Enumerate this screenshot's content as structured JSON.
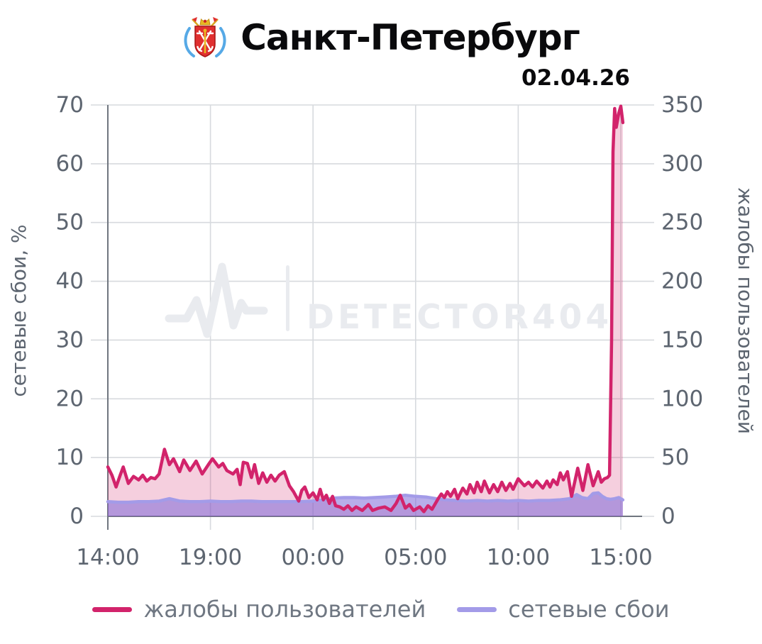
{
  "header": {
    "title": "Санкт-Петербург",
    "date": "02.04.26",
    "emblem_icon": "spb-coat-of-arms-icon"
  },
  "watermark": {
    "brand": "DETECTOR404",
    "icon": "pulse-icon"
  },
  "colors": {
    "complaints": "#d2236b",
    "complaints_fill": "rgba(210,35,107,0.22)",
    "outages": "#a39be8",
    "outages_fill": "rgba(126,106,216,0.55)",
    "grid": "#d7dade",
    "axis": "#70767f",
    "tick_text": "#5d6570",
    "legend_text": "#6f7782",
    "watermark": "#e9ebef",
    "title_text": "#0a0a0c"
  },
  "legend": {
    "items": [
      {
        "label": "жалобы пользователей",
        "color_key": "complaints"
      },
      {
        "label": "сетевые сбои",
        "color_key": "outages"
      }
    ]
  },
  "chart_data": {
    "type": "line",
    "title": "Санкт-Петербург",
    "subtitle": "02.04.26",
    "x_unit": "hours since 14:00",
    "x_ticks": [
      "14:00",
      "19:00",
      "00:00",
      "05:00",
      "10:00",
      "15:00"
    ],
    "x_tick_hours": [
      0,
      5,
      10,
      15,
      20,
      25
    ],
    "x_range_hours": [
      0,
      25.1
    ],
    "grid": true,
    "legend_position": "bottom",
    "left_axis": {
      "label": "сетевые сбои, %",
      "min": 0,
      "max": 70,
      "ticks": [
        0,
        10,
        20,
        30,
        40,
        50,
        60,
        70
      ]
    },
    "right_axis": {
      "label": "жалобы пользователей",
      "min": 0,
      "max": 350,
      "ticks": [
        0,
        50,
        100,
        150,
        200,
        250,
        300,
        350
      ]
    },
    "series": [
      {
        "name": "жалобы пользователей",
        "axis": "right",
        "color": "#d2236b",
        "points": [
          [
            0,
            42
          ],
          [
            0.2,
            35
          ],
          [
            0.4,
            25
          ],
          [
            0.6,
            35
          ],
          [
            0.75,
            42
          ],
          [
            1.0,
            28
          ],
          [
            1.25,
            34
          ],
          [
            1.5,
            31
          ],
          [
            1.7,
            35
          ],
          [
            1.9,
            30
          ],
          [
            2.1,
            33
          ],
          [
            2.3,
            32
          ],
          [
            2.5,
            36
          ],
          [
            2.76,
            57
          ],
          [
            3.0,
            44
          ],
          [
            3.2,
            49
          ],
          [
            3.5,
            38
          ],
          [
            3.7,
            48
          ],
          [
            4.0,
            39
          ],
          [
            4.3,
            47
          ],
          [
            4.6,
            36
          ],
          [
            4.9,
            44
          ],
          [
            5.1,
            49
          ],
          [
            5.4,
            42
          ],
          [
            5.6,
            45
          ],
          [
            5.8,
            39
          ],
          [
            6.1,
            36
          ],
          [
            6.3,
            40
          ],
          [
            6.45,
            27
          ],
          [
            6.6,
            46
          ],
          [
            6.8,
            45
          ],
          [
            7.0,
            33
          ],
          [
            7.15,
            44
          ],
          [
            7.35,
            28
          ],
          [
            7.55,
            37
          ],
          [
            7.75,
            29
          ],
          [
            7.95,
            35
          ],
          [
            8.15,
            30
          ],
          [
            8.35,
            35
          ],
          [
            8.6,
            38
          ],
          [
            8.85,
            26
          ],
          [
            9.05,
            21
          ],
          [
            9.3,
            13
          ],
          [
            9.45,
            22
          ],
          [
            9.6,
            25
          ],
          [
            9.8,
            16
          ],
          [
            10.0,
            20
          ],
          [
            10.2,
            14
          ],
          [
            10.35,
            23
          ],
          [
            10.5,
            14
          ],
          [
            10.65,
            18
          ],
          [
            10.8,
            11
          ],
          [
            10.95,
            17
          ],
          [
            11.1,
            9
          ],
          [
            11.3,
            8
          ],
          [
            11.5,
            6
          ],
          [
            11.7,
            9
          ],
          [
            11.9,
            5
          ],
          [
            12.1,
            8
          ],
          [
            12.4,
            5
          ],
          [
            12.7,
            10
          ],
          [
            12.9,
            5
          ],
          [
            13.2,
            7
          ],
          [
            13.5,
            8
          ],
          [
            13.8,
            5
          ],
          [
            14.05,
            11
          ],
          [
            14.25,
            18
          ],
          [
            14.5,
            7
          ],
          [
            14.7,
            10
          ],
          [
            14.9,
            5
          ],
          [
            15.2,
            8
          ],
          [
            15.4,
            4
          ],
          [
            15.6,
            9
          ],
          [
            15.8,
            6
          ],
          [
            16.1,
            15
          ],
          [
            16.25,
            19
          ],
          [
            16.4,
            16
          ],
          [
            16.55,
            21
          ],
          [
            16.7,
            17
          ],
          [
            16.9,
            23
          ],
          [
            17.05,
            15
          ],
          [
            17.3,
            24
          ],
          [
            17.5,
            19
          ],
          [
            17.65,
            27
          ],
          [
            17.85,
            20
          ],
          [
            18.0,
            29
          ],
          [
            18.2,
            21
          ],
          [
            18.35,
            30
          ],
          [
            18.6,
            20
          ],
          [
            18.8,
            27
          ],
          [
            19.0,
            21
          ],
          [
            19.2,
            29
          ],
          [
            19.4,
            22
          ],
          [
            19.6,
            28
          ],
          [
            19.75,
            23
          ],
          [
            20.0,
            32
          ],
          [
            20.3,
            26
          ],
          [
            20.5,
            29
          ],
          [
            20.7,
            25
          ],
          [
            20.9,
            30
          ],
          [
            21.1,
            26
          ],
          [
            21.2,
            24
          ],
          [
            21.4,
            30
          ],
          [
            21.55,
            25
          ],
          [
            21.7,
            31
          ],
          [
            21.9,
            27
          ],
          [
            22.05,
            37
          ],
          [
            22.2,
            31
          ],
          [
            22.4,
            38
          ],
          [
            22.6,
            17
          ],
          [
            22.9,
            41
          ],
          [
            23.15,
            22
          ],
          [
            23.4,
            44
          ],
          [
            23.65,
            26
          ],
          [
            23.9,
            38
          ],
          [
            24.05,
            29
          ],
          [
            24.2,
            32
          ],
          [
            24.35,
            33
          ],
          [
            24.45,
            35
          ],
          [
            24.55,
            150
          ],
          [
            24.62,
            310
          ],
          [
            24.7,
            347
          ],
          [
            24.78,
            331
          ],
          [
            24.9,
            343
          ],
          [
            25.0,
            349
          ],
          [
            25.1,
            335
          ]
        ]
      },
      {
        "name": "сетевые сбои",
        "axis": "left",
        "color": "#a39be8",
        "points": [
          [
            0,
            2.5
          ],
          [
            0.5,
            2.4
          ],
          [
            1,
            2.4
          ],
          [
            1.5,
            2.5
          ],
          [
            2,
            2.5
          ],
          [
            2.5,
            2.6
          ],
          [
            3,
            3.0
          ],
          [
            3.5,
            2.6
          ],
          [
            4,
            2.5
          ],
          [
            4.5,
            2.5
          ],
          [
            5,
            2.6
          ],
          [
            5.5,
            2.5
          ],
          [
            6,
            2.5
          ],
          [
            6.5,
            2.6
          ],
          [
            7,
            2.6
          ],
          [
            7.5,
            2.5
          ],
          [
            8,
            2.5
          ],
          [
            8.5,
            2.5
          ],
          [
            9,
            2.5
          ],
          [
            9.5,
            2.5
          ],
          [
            10,
            2.6
          ],
          [
            10.5,
            2.8
          ],
          [
            11,
            3.1
          ],
          [
            11.5,
            3.2
          ],
          [
            12,
            3.2
          ],
          [
            12.5,
            3.1
          ],
          [
            13,
            3.2
          ],
          [
            13.5,
            3.3
          ],
          [
            14,
            3.4
          ],
          [
            14.5,
            3.6
          ],
          [
            15,
            3.4
          ],
          [
            15.5,
            3.3
          ],
          [
            16,
            3.0
          ],
          [
            16.5,
            2.8
          ],
          [
            17,
            2.7
          ],
          [
            17.5,
            2.6
          ],
          [
            18,
            2.7
          ],
          [
            18.5,
            2.6
          ],
          [
            19,
            2.7
          ],
          [
            19.5,
            2.6
          ],
          [
            20,
            2.7
          ],
          [
            20.5,
            2.6
          ],
          [
            21,
            2.7
          ],
          [
            21.5,
            2.7
          ],
          [
            22,
            2.8
          ],
          [
            22.5,
            3.0
          ],
          [
            22.85,
            3.7
          ],
          [
            23.1,
            3.2
          ],
          [
            23.4,
            3.0
          ],
          [
            23.65,
            3.9
          ],
          [
            23.9,
            4.0
          ],
          [
            24.1,
            3.4
          ],
          [
            24.3,
            3.0
          ],
          [
            24.5,
            2.9
          ],
          [
            24.7,
            3.0
          ],
          [
            24.9,
            3.2
          ],
          [
            25.1,
            2.8
          ]
        ]
      }
    ]
  }
}
